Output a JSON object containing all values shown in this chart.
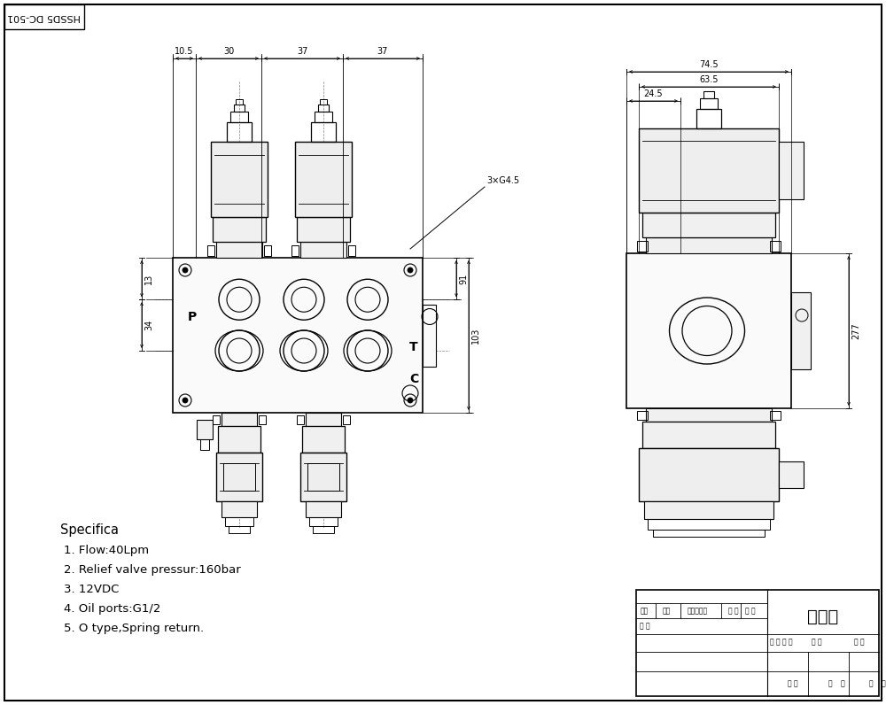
{
  "bg_color": "#ffffff",
  "line_color": "#000000",
  "title_box_text": "外形图",
  "header_label": "HSSD5 DC-501",
  "specs": [
    "Specifica",
    "1. Flow:40Lpm",
    "2. Relief valve pressur:160bar",
    "3. 12VDC",
    "4. Oil ports:G1/2",
    "5. O type,Spring return."
  ],
  "dim_labels": {
    "seg1": "10.5",
    "seg2": "30",
    "seg3": "37",
    "seg4": "37",
    "left1": "13",
    "left2": "34",
    "right1": "91",
    "right2": "103",
    "port": "3×G4.5",
    "side_total": "74.5",
    "side_inner": "63.5",
    "side_left": "24.5",
    "side_height": "277"
  }
}
